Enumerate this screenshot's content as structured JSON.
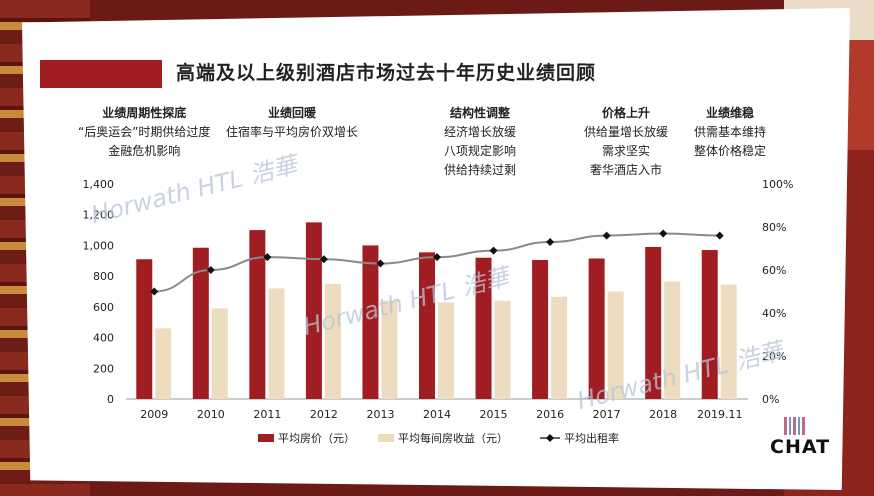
{
  "title": "高端及以上级别酒店市场过去十年历史业绩回顾",
  "annotations": [
    {
      "heading": "业绩周期性探底",
      "lines": [
        "“后奥运会”时期供给过度",
        "金融危机影响"
      ]
    },
    {
      "heading": "业绩回暖",
      "lines": [
        "住宿率与平均房价双增长"
      ]
    },
    {
      "heading": "结构性调整",
      "lines": [
        "经济增长放缓",
        "八项规定影响",
        "供给持续过剩"
      ]
    },
    {
      "heading": "价格上升",
      "lines": [
        "供给量增长放缓",
        "需求坚实",
        "奢华酒店入市"
      ]
    },
    {
      "heading": "业绩维稳",
      "lines": [
        "供需基本维持",
        "整体价格稳定"
      ]
    }
  ],
  "watermark": "Horwath HTL 浩華",
  "brand": "CHAT",
  "chart_data": {
    "type": "bar",
    "categories": [
      "2009",
      "2010",
      "2011",
      "2012",
      "2013",
      "2014",
      "2015",
      "2016",
      "2017",
      "2018",
      "2019.11"
    ],
    "series": [
      {
        "name": "平均房价（元）",
        "type": "bar",
        "color": "#a01e22",
        "values": [
          910,
          985,
          1100,
          1150,
          1000,
          955,
          920,
          905,
          915,
          990,
          970
        ]
      },
      {
        "name": "平均每间房收益（元）",
        "type": "bar",
        "color": "#eddcc0",
        "values": [
          460,
          590,
          720,
          750,
          640,
          630,
          640,
          665,
          700,
          765,
          745
        ]
      },
      {
        "name": "平均出租率",
        "type": "line",
        "axis": "right",
        "color": "#333333",
        "values": [
          50,
          60,
          66,
          65,
          63,
          66,
          69,
          73,
          76,
          77,
          76
        ]
      }
    ],
    "y_left": {
      "min": 0,
      "max": 1400,
      "ticks": [
        "0",
        "200",
        "400",
        "600",
        "800",
        "1,000",
        "1,200",
        "1,400"
      ]
    },
    "y_right": {
      "min": 0,
      "max": 100,
      "ticks": [
        "0%",
        "20%",
        "40%",
        "60%",
        "80%",
        "100%"
      ]
    },
    "legend_position": "bottom"
  }
}
